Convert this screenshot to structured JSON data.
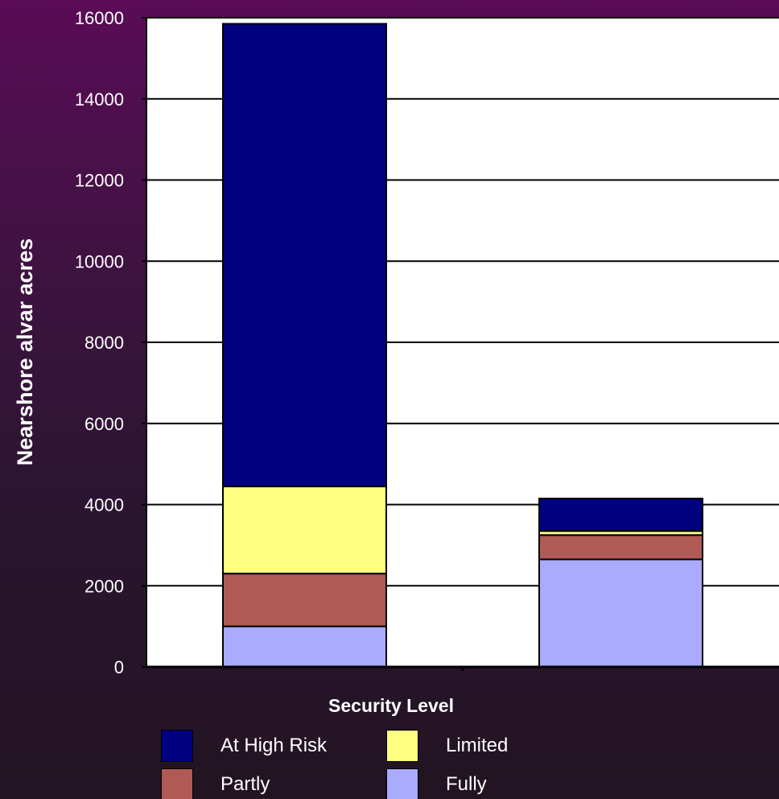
{
  "chart_data": {
    "type": "bar",
    "stacked": true,
    "categories": [
      "",
      ""
    ],
    "series": [
      {
        "name": "Fully",
        "values": [
          1000,
          2650
        ],
        "color": "#aaaaff"
      },
      {
        "name": "Partly",
        "values": [
          1300,
          600
        ],
        "color": "#b05a55"
      },
      {
        "name": "Limited",
        "values": [
          2150,
          100
        ],
        "color": "#ffff80"
      },
      {
        "name": "At High Risk",
        "values": [
          11400,
          800
        ],
        "color": "#000080"
      }
    ],
    "ylabel": "Nearshore alvar acres",
    "xlabel": "Security Level",
    "ylim": [
      0,
      16000
    ],
    "yticks": [
      "0",
      "2000",
      "4000",
      "6000",
      "8000",
      "10000",
      "12000",
      "14000",
      "16000"
    ],
    "grid": true,
    "legend_position": "bottom",
    "legend_order": [
      "At High Risk",
      "Limited",
      "Partly",
      "Fully"
    ],
    "plot_background": "#ffffff"
  }
}
